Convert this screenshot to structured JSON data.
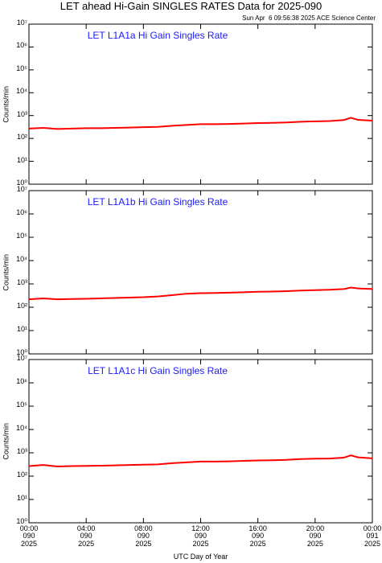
{
  "title": "LET ahead Hi-Gain SINGLES RATES Data for 2025-090",
  "subtitle": "Sun Apr  6 09:56:38 2025 ACE Science Center",
  "xlabel": "UTC Day of Year",
  "chart_data": [
    {
      "type": "line",
      "title": "LET L1A1a Hi Gain Singles Rate",
      "ylabel": "Counts/min",
      "color": "#ff0000",
      "log_y": true,
      "x": [
        0,
        1,
        2,
        3,
        4,
        5,
        6,
        7,
        8,
        9,
        10,
        11,
        12,
        13,
        14,
        15,
        16,
        17,
        18,
        19,
        20,
        21,
        22,
        22.5,
        23,
        24
      ],
      "values": [
        270,
        290,
        260,
        270,
        280,
        280,
        290,
        300,
        310,
        320,
        360,
        390,
        420,
        420,
        430,
        450,
        470,
        480,
        500,
        540,
        560,
        580,
        640,
        800,
        650,
        600
      ],
      "xlim": [
        0,
        24
      ],
      "xticks": [
        0,
        4,
        8,
        12,
        16,
        20,
        24
      ],
      "ylim": [
        1,
        10000000
      ],
      "yticks": [
        {
          "value": 1,
          "label": "10⁰"
        },
        {
          "value": 10,
          "label": "10¹"
        },
        {
          "value": 100,
          "label": "10²"
        },
        {
          "value": 1000,
          "label": "10³"
        },
        {
          "value": 10000,
          "label": "10⁴"
        },
        {
          "value": 100000,
          "label": "10⁵"
        },
        {
          "value": 1000000,
          "label": "10⁶"
        },
        {
          "value": 10000000,
          "label": "10⁷"
        }
      ]
    },
    {
      "type": "line",
      "title": "LET L1A1b Hi Gain Singles Rate",
      "ylabel": "Counts/min",
      "color": "#ff0000",
      "log_y": true,
      "x": [
        0,
        1,
        2,
        3,
        4,
        5,
        6,
        7,
        8,
        9,
        10,
        11,
        12,
        13,
        14,
        15,
        16,
        17,
        18,
        19,
        20,
        21,
        22,
        22.5,
        23,
        24
      ],
      "values": [
        220,
        240,
        220,
        225,
        230,
        240,
        250,
        260,
        270,
        290,
        330,
        380,
        400,
        410,
        420,
        440,
        460,
        470,
        490,
        520,
        540,
        560,
        600,
        700,
        640,
        600
      ],
      "xlim": [
        0,
        24
      ],
      "xticks": [
        0,
        4,
        8,
        12,
        16,
        20,
        24
      ],
      "ylim": [
        1,
        10000000
      ],
      "yticks": [
        {
          "value": 1,
          "label": "10⁰"
        },
        {
          "value": 10,
          "label": "10¹"
        },
        {
          "value": 100,
          "label": "10²"
        },
        {
          "value": 1000,
          "label": "10³"
        },
        {
          "value": 10000,
          "label": "10⁴"
        },
        {
          "value": 100000,
          "label": "10⁵"
        },
        {
          "value": 1000000,
          "label": "10⁶"
        },
        {
          "value": 10000000,
          "label": "10⁷"
        }
      ]
    },
    {
      "type": "line",
      "title": "LET L1A1c Hi Gain Singles Rate",
      "ylabel": "Counts/min",
      "color": "#ff0000",
      "log_y": true,
      "x": [
        0,
        1,
        2,
        3,
        4,
        5,
        6,
        7,
        8,
        9,
        10,
        11,
        12,
        13,
        14,
        15,
        16,
        17,
        18,
        19,
        20,
        21,
        22,
        22.5,
        23,
        24
      ],
      "values": [
        270,
        300,
        260,
        270,
        275,
        280,
        290,
        300,
        310,
        320,
        360,
        390,
        420,
        420,
        430,
        450,
        470,
        480,
        500,
        540,
        560,
        570,
        620,
        780,
        640,
        580
      ],
      "xlim": [
        0,
        24
      ],
      "xticks": [
        {
          "value": 0,
          "label": "00:00\n090\n2025"
        },
        {
          "value": 4,
          "label": "04:00\n090\n2025"
        },
        {
          "value": 8,
          "label": "08:00\n090\n2025"
        },
        {
          "value": 12,
          "label": "12:00\n090\n2025"
        },
        {
          "value": 16,
          "label": "16:00\n090\n2025"
        },
        {
          "value": 20,
          "label": "20:00\n090\n2025"
        },
        {
          "value": 24,
          "label": "00:00\n091\n2025"
        }
      ],
      "ylim": [
        1,
        10000000
      ],
      "yticks": [
        {
          "value": 1,
          "label": "10⁰"
        },
        {
          "value": 10,
          "label": "10¹"
        },
        {
          "value": 100,
          "label": "10²"
        },
        {
          "value": 1000,
          "label": "10³"
        },
        {
          "value": 10000,
          "label": "10⁴"
        },
        {
          "value": 100000,
          "label": "10⁵"
        },
        {
          "value": 1000000,
          "label": "10⁶"
        },
        {
          "value": 10000000,
          "label": "10⁷"
        }
      ]
    }
  ]
}
